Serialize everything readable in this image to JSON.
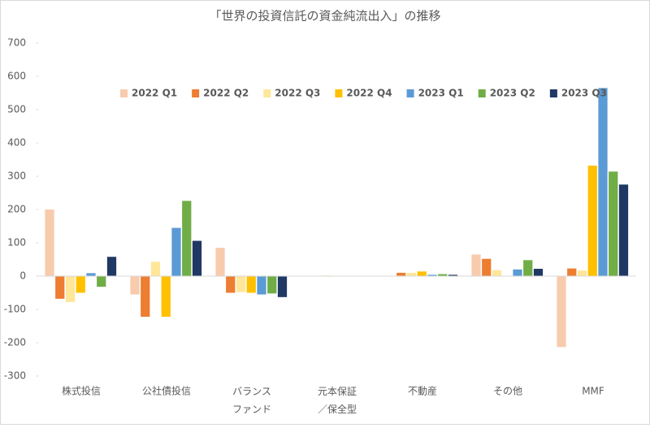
{
  "chart_data": {
    "type": "bar",
    "title": "「世界の投資信託の資金純流出入」の推移",
    "categories": [
      "株式投信",
      "公社債投信",
      "バランス\nファンド",
      "元本保証\n／保全型",
      "不動産",
      "その他",
      "MMF"
    ],
    "series": [
      {
        "name": "2022 Q1",
        "color": "#f8cbad",
        "values": [
          200,
          -55,
          85,
          0,
          0,
          65,
          -213
        ]
      },
      {
        "name": "2022 Q2",
        "color": "#ed7d31",
        "values": [
          -68,
          -122,
          -50,
          0,
          10,
          52,
          23
        ]
      },
      {
        "name": "2022 Q3",
        "color": "#ffe699",
        "values": [
          -78,
          43,
          -48,
          2,
          10,
          18,
          17
        ]
      },
      {
        "name": "2022 Q4",
        "color": "#ffc000",
        "values": [
          -50,
          -122,
          -50,
          0,
          14,
          0,
          332
        ]
      },
      {
        "name": "2023 Q1",
        "color": "#5b9bd5",
        "values": [
          9,
          145,
          -55,
          0,
          4,
          20,
          565
        ]
      },
      {
        "name": "2023 Q2",
        "color": "#70ad47",
        "values": [
          -32,
          226,
          -52,
          0,
          6,
          48,
          314
        ]
      },
      {
        "name": "2023 Q3",
        "color": "#203864",
        "values": [
          58,
          106,
          -63,
          0,
          4,
          22,
          275
        ]
      }
    ],
    "ylim": [
      -300,
      700
    ],
    "yticks": [
      -300,
      -200,
      -100,
      0,
      100,
      200,
      300,
      400,
      500,
      600,
      700
    ],
    "legend": "top"
  }
}
